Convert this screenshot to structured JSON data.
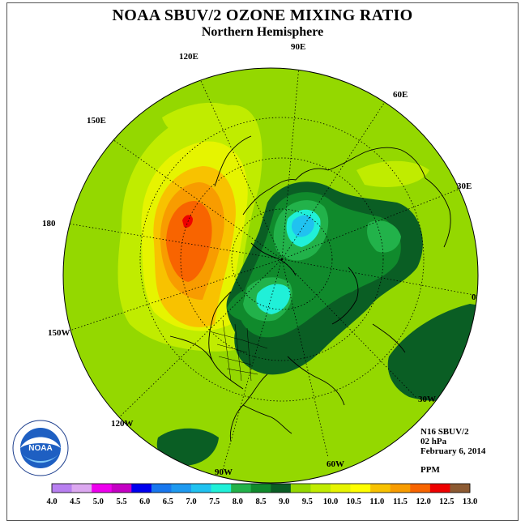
{
  "title": "NOAA SBUV/2 OZONE MIXING RATIO",
  "subtitle": "Northern Hemisphere",
  "meridian_labels": {
    "e90": "90E",
    "e60": "60E",
    "e30": "30E",
    "zero": "0",
    "w30": "30W",
    "w60": "60W",
    "w90": "90W",
    "w120": "120W",
    "w150": "150W",
    "d180": "180",
    "e150": "150E",
    "e120": "120E"
  },
  "info": {
    "satellite": "N16 SBUV/2",
    "level": "02 hPa",
    "date": "February 6, 2014",
    "units": "PPM"
  },
  "logo": {
    "text": "NOAA",
    "ring_text": "NATIONAL OCEANIC AND ATMOSPHERIC ADMINISTRATION · U.S. DEPARTMENT OF COMMERCE"
  },
  "colorbar": {
    "colors": [
      "#b87ff0",
      "#dca8f0",
      "#ee00ee",
      "#c400c4",
      "#0000ee",
      "#1877ee",
      "#1e9af0",
      "#20c2f0",
      "#20f0d8",
      "#22b24a",
      "#108a2c",
      "#0a5e24",
      "#94d800",
      "#c0ec00",
      "#e6f400",
      "#ffff00",
      "#f8c200",
      "#f89c00",
      "#f86400",
      "#ee0000",
      "#8c5a32"
    ],
    "ticks": [
      "4.0",
      "4.5",
      "5.0",
      "5.5",
      "6.0",
      "6.5",
      "7.0",
      "7.5",
      "8.0",
      "8.5",
      "9.0",
      "9.5",
      "10.0",
      "10.5",
      "11.0",
      "11.5",
      "12.0",
      "12.5",
      "13.0"
    ]
  }
}
